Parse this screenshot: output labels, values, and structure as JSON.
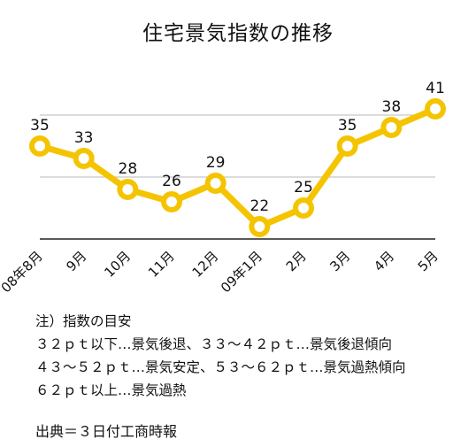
{
  "chart_data": {
    "type": "line",
    "title": "住宅景気指数の推移",
    "categories": [
      "08年8月",
      "9月",
      "10月",
      "11月",
      "12月",
      "09年1月",
      "2月",
      "3月",
      "4月",
      "5月"
    ],
    "values": [
      35,
      33,
      28,
      26,
      29,
      22,
      25,
      35,
      38,
      41
    ],
    "ylim": [
      20,
      45
    ],
    "gridlines": [
      30,
      40
    ],
    "grid": "horizontal",
    "line_color": "#f5c400",
    "marker_fill": "#ffffff",
    "xlabel": "",
    "ylabel": ""
  },
  "notes": {
    "heading": "注）指数の目安",
    "lines": [
      "３２ｐｔ以下…景気後退、３３～４２ｐｔ…景気後退傾向",
      "４３～５２ｐｔ…景気安定、５３～６２ｐｔ…景気過熱傾向",
      "６２ｐｔ以上…景気過熱"
    ]
  },
  "source": "出典＝３日付工商時報"
}
